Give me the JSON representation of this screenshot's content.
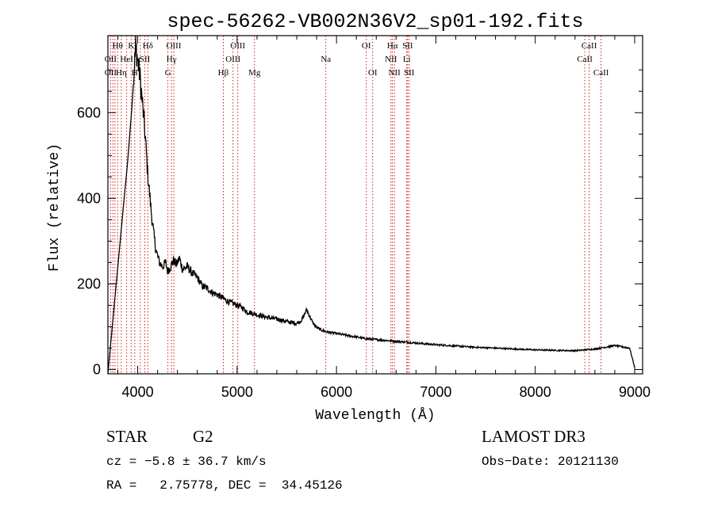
{
  "chart_data": {
    "type": "line",
    "title": "spec-56262-VB002N36V2_sp01-192.fits",
    "xlabel": "Wavelength (Å)",
    "ylabel": "Flux (relative)",
    "xlim": [
      3700,
      9080
    ],
    "ylim": [
      -10,
      780
    ],
    "x_ticks": [
      4000,
      5000,
      6000,
      7000,
      8000,
      9000
    ],
    "y_ticks": [
      0,
      200,
      400,
      600
    ],
    "grid": false,
    "series": [
      {
        "name": "spectrum",
        "x": [
          3700,
          3720,
          3740,
          3760,
          3780,
          3800,
          3820,
          3840,
          3860,
          3880,
          3900,
          3920,
          3940,
          3960,
          3970,
          3980,
          3990,
          4000,
          4010,
          4020,
          4040,
          4060,
          4080,
          4100,
          4120,
          4140,
          4160,
          4180,
          4200,
          4220,
          4250,
          4280,
          4300,
          4330,
          4360,
          4390,
          4420,
          4450,
          4500,
          4550,
          4600,
          4650,
          4700,
          4750,
          4800,
          4850,
          4900,
          4950,
          5000,
          5050,
          5100,
          5150,
          5200,
          5250,
          5300,
          5350,
          5400,
          5450,
          5500,
          5550,
          5600,
          5650,
          5680,
          5700,
          5730,
          5760,
          5800,
          5850,
          5900,
          6000,
          6100,
          6200,
          6300,
          6400,
          6500,
          6600,
          6700,
          6800,
          6900,
          7000,
          7200,
          7400,
          7600,
          7800,
          8000,
          8200,
          8400,
          8500,
          8600,
          8700,
          8800,
          8900,
          8950,
          9000
        ],
        "y": [
          -10,
          40,
          90,
          140,
          190,
          240,
          290,
          340,
          390,
          440,
          490,
          550,
          610,
          680,
          720,
          755,
          740,
          720,
          705,
          690,
          640,
          590,
          530,
          460,
          410,
          360,
          320,
          285,
          265,
          250,
          240,
          250,
          230,
          240,
          255,
          245,
          260,
          235,
          240,
          225,
          215,
          195,
          190,
          180,
          175,
          168,
          160,
          155,
          150,
          145,
          135,
          132,
          128,
          125,
          122,
          120,
          118,
          115,
          112,
          110,
          108,
          115,
          130,
          140,
          125,
          110,
          98,
          92,
          88,
          84,
          80,
          76,
          72,
          70,
          68,
          66,
          64,
          62,
          60,
          58,
          55,
          52,
          50,
          48,
          46,
          45,
          44,
          46,
          48,
          52,
          56,
          52,
          50,
          5
        ]
      }
    ],
    "lines_rest": [
      3727,
      3750,
      3771,
      3798,
      3835,
      3889,
      3934,
      3970,
      4026,
      4072,
      4102,
      4304,
      4340,
      4363,
      4861,
      4959,
      5007,
      5175,
      5893,
      6300,
      6364,
      6548,
      6563,
      6583,
      6707,
      6716,
      6731,
      8498,
      8542,
      8662
    ],
    "line_labels": [
      {
        "text": "Hθ",
        "wave": 3798,
        "row": 0
      },
      {
        "text": "K",
        "wave": 3934,
        "row": 0
      },
      {
        "text": "Hδ",
        "wave": 4102,
        "row": 0
      },
      {
        "text": "OIII",
        "wave": 4363,
        "row": 0
      },
      {
        "text": "OIII",
        "wave": 5007,
        "row": 0
      },
      {
        "text": "OI",
        "wave": 6300,
        "row": 0
      },
      {
        "text": "Hα",
        "wave": 6563,
        "row": 0
      },
      {
        "text": "SII",
        "wave": 6716,
        "row": 0
      },
      {
        "text": "CaII",
        "wave": 8542,
        "row": 0
      },
      {
        "text": "OII",
        "wave": 3727,
        "row": 1
      },
      {
        "text": "HeI",
        "wave": 3889,
        "row": 1
      },
      {
        "text": "SII",
        "wave": 4072,
        "row": 1
      },
      {
        "text": "Hγ",
        "wave": 4340,
        "row": 1
      },
      {
        "text": "OIII",
        "wave": 4959,
        "row": 1
      },
      {
        "text": "Na",
        "wave": 5893,
        "row": 1
      },
      {
        "text": "NII",
        "wave": 6548,
        "row": 1
      },
      {
        "text": "Li",
        "wave": 6707,
        "row": 1
      },
      {
        "text": "CaII",
        "wave": 8498,
        "row": 1
      },
      {
        "text": "OII",
        "wave": 3727,
        "row": 2
      },
      {
        "text": "Hη",
        "wave": 3835,
        "row": 2
      },
      {
        "text": "H",
        "wave": 3970,
        "row": 2
      },
      {
        "text": "G",
        "wave": 4304,
        "row": 2
      },
      {
        "text": "Hβ",
        "wave": 4861,
        "row": 2
      },
      {
        "text": "Mg",
        "wave": 5175,
        "row": 2
      },
      {
        "text": "OI",
        "wave": 6364,
        "row": 2
      },
      {
        "text": "NII",
        "wave": 6583,
        "row": 2
      },
      {
        "text": "SII",
        "wave": 6731,
        "row": 2
      },
      {
        "text": "CaII",
        "wave": 8662,
        "row": 2
      }
    ],
    "line_color": "#cc0000"
  },
  "info": {
    "object_class": "STAR",
    "subclass": "G2",
    "survey": "LAMOST DR3",
    "cz": "cz = −5.8 ± 36.7 km/s",
    "obs_date": "Obs−Date: 20121130",
    "coords": "RA =   2.75778, DEC =  34.45126"
  }
}
